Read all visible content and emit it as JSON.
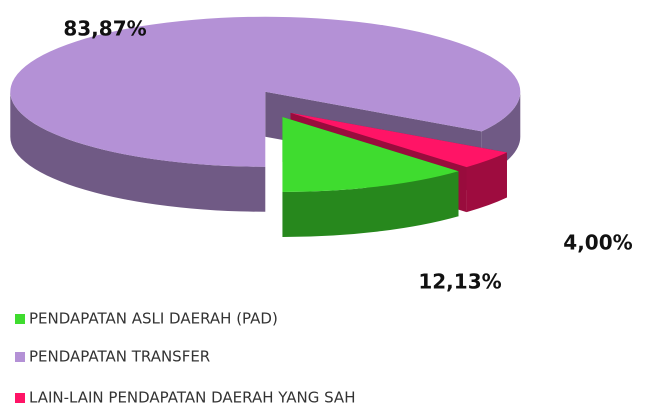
{
  "chart_data": {
    "type": "pie3d",
    "categories": [
      "PENDAPATAN ASLI DAERAH (PAD)",
      "PENDAPATAN TRANSFER",
      "LAIN-LAIN PENDAPATAN DAERAH YANG SAH"
    ],
    "values": [
      12.13,
      83.87,
      4.0
    ],
    "value_labels": [
      "12,13%",
      "83,87%",
      "4,00%"
    ],
    "colors": [
      "#3fdc2f",
      "#b491d6",
      "#ff1466"
    ],
    "legend": "bottom"
  }
}
